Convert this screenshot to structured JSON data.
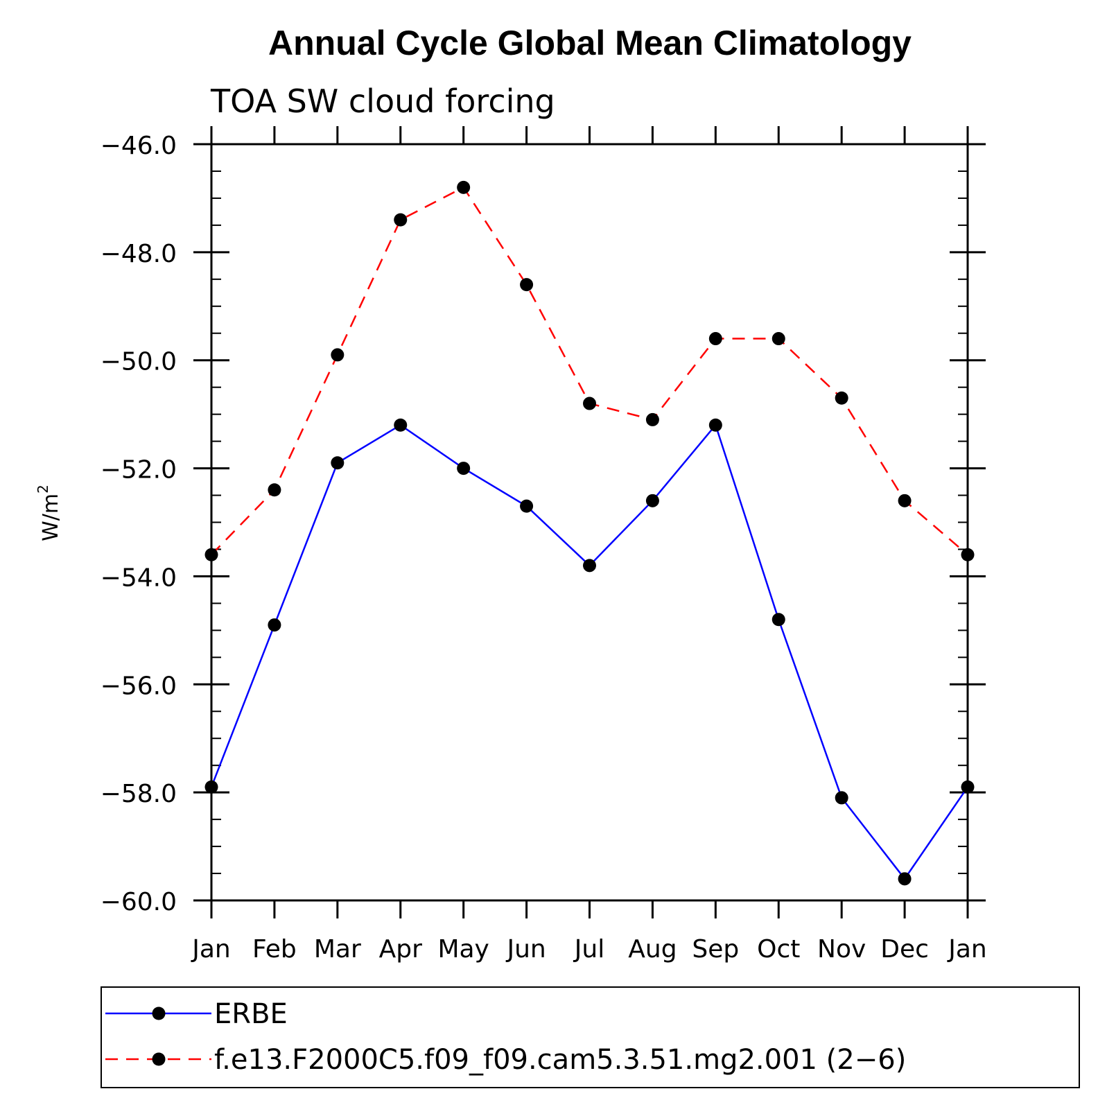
{
  "chart_data": {
    "type": "line",
    "title": "Annual Cycle Global Mean Climatology",
    "subtitle": "TOA SW cloud forcing",
    "ylabel": "W/m",
    "ylabel_superscript": "2",
    "categories": [
      "Jan",
      "Feb",
      "Mar",
      "Apr",
      "May",
      "Jun",
      "Jul",
      "Aug",
      "Sep",
      "Oct",
      "Nov",
      "Dec",
      "Jan"
    ],
    "yticks": [
      "-46.0",
      "-48.0",
      "-50.0",
      "-52.0",
      "-54.0",
      "-56.0",
      "-58.0",
      "-60.0"
    ],
    "ylim": [
      -60.0,
      -46.0
    ],
    "grid": false,
    "legend_position": "bottom",
    "series": [
      {
        "name": "ERBE",
        "color": "#0000ff",
        "style": "solid",
        "marker": "filled-circle",
        "values": [
          -57.9,
          -54.9,
          -51.9,
          -51.2,
          -52.0,
          -52.7,
          -53.8,
          -52.6,
          -51.2,
          -54.8,
          -58.1,
          -59.6,
          -57.9
        ]
      },
      {
        "name": "f.e13.F2000C5.f09_f09.cam5.3.51.mg2.001 (2−6)",
        "color": "#ff0000",
        "style": "dashed",
        "marker": "filled-circle",
        "values": [
          -53.6,
          -52.4,
          -49.9,
          -47.4,
          -46.8,
          -48.6,
          -50.8,
          -51.1,
          -49.6,
          -49.6,
          -50.7,
          -52.6,
          -53.6
        ]
      }
    ]
  }
}
